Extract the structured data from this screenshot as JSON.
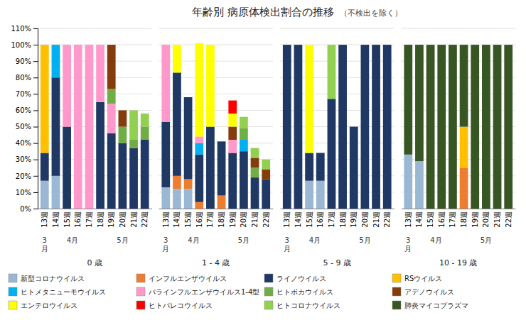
{
  "chart_data": [
    {
      "type": "bar",
      "stacked": true,
      "grid": true,
      "title": "年齢別 病原体検出割合の推移",
      "subtitle": "（不検出を除く）",
      "xlabel": "0 歳",
      "categories": [
        "13週",
        "14週",
        "15週",
        "16週",
        "17週",
        "18週",
        "19週",
        "20週",
        "21週",
        "22週"
      ],
      "annotations": [
        {
          "text": "3\n月",
          "categories": [
            "13週"
          ]
        },
        {
          "text": "4月",
          "categories": [
            "14週",
            "15週",
            "16週",
            "17週"
          ]
        },
        {
          "text": "5月",
          "categories": [
            "18週",
            "19週",
            "20週",
            "21週",
            "22週"
          ]
        }
      ],
      "ylim": [
        0,
        1.1
      ],
      "yticks": [
        {
          "value": 0.0,
          "label": "0%"
        },
        {
          "value": 0.1,
          "label": "10%"
        },
        {
          "value": 0.2,
          "label": "20%"
        },
        {
          "value": 0.3,
          "label": "30%"
        },
        {
          "value": 0.4,
          "label": "40%"
        },
        {
          "value": 0.5,
          "label": "50%"
        },
        {
          "value": 0.6,
          "label": "60%"
        },
        {
          "value": 0.7,
          "label": "70%"
        },
        {
          "value": 0.8,
          "label": "80%"
        },
        {
          "value": 0.9,
          "label": "90%"
        },
        {
          "value": 1.0,
          "label": "100%"
        },
        {
          "value": 1.1,
          "label": "110%"
        }
      ],
      "series": [
        {
          "name": "新型コロナウイルス",
          "color": "#9ab7d3",
          "values": [
            0.17,
            0.2,
            0,
            0,
            0,
            0,
            0,
            0,
            0,
            0
          ]
        },
        {
          "name": "インフルエンザウイルス",
          "color": "#ed7d31",
          "values": [
            0,
            0,
            0,
            0,
            0,
            0,
            0,
            0,
            0,
            0
          ]
        },
        {
          "name": "ライノウイルス",
          "color": "#1f3864",
          "values": [
            0.17,
            0.6,
            0.5,
            0,
            0,
            0.65,
            0.46,
            0.4,
            0.37,
            0.42
          ]
        },
        {
          "name": "RSウイルス",
          "color": "#ffc000",
          "values": [
            0.66,
            0,
            0,
            0,
            0,
            0,
            0,
            0,
            0,
            0
          ]
        },
        {
          "name": "ヒトメタニューモウイルス",
          "color": "#00b0f0",
          "values": [
            0,
            0.2,
            0,
            0,
            0,
            0,
            0,
            0,
            0,
            0
          ]
        },
        {
          "name": "パラインフルエンザウイルス1-4型",
          "color": "#ff99cc",
          "values": [
            0,
            0,
            0.5,
            1.0,
            1.0,
            0.35,
            0.18,
            0,
            0,
            0
          ]
        },
        {
          "name": "ヒトボカウイルス",
          "color": "#70ad47",
          "values": [
            0,
            0,
            0,
            0,
            0,
            0,
            0.09,
            0.1,
            0.05,
            0.08
          ]
        },
        {
          "name": "アデノウイルス",
          "color": "#843c0c",
          "values": [
            0,
            0,
            0,
            0,
            0,
            0,
            0.27,
            0.1,
            0,
            0
          ]
        },
        {
          "name": "エンテロウイルス",
          "color": "#ffff00",
          "values": [
            0,
            0,
            0,
            0,
            0,
            0,
            0,
            0,
            0,
            0
          ]
        },
        {
          "name": "ヒトパレコウイルス",
          "color": "#ff0000",
          "values": [
            0,
            0,
            0,
            0,
            0,
            0,
            0,
            0,
            0,
            0
          ]
        },
        {
          "name": "ヒトコロナウイルス",
          "color": "#92d050",
          "values": [
            0,
            0,
            0,
            0,
            0,
            0,
            0,
            0,
            0.18,
            0.08
          ]
        },
        {
          "name": "肺炎マイコプラズマ",
          "color": "#375623",
          "values": [
            0,
            0,
            0,
            0,
            0,
            0,
            0,
            0,
            0,
            0
          ]
        }
      ]
    },
    {
      "type": "bar",
      "stacked": true,
      "grid": true,
      "tick_labels": "x",
      "xlabel": "1 - 4 歳",
      "categories": [
        "13週",
        "14週",
        "15週",
        "16週",
        "17週",
        "18週",
        "19週",
        "20週",
        "21週",
        "22週"
      ],
      "annotations": [
        {
          "text": "3\n月",
          "categories": [
            "13週"
          ]
        },
        {
          "text": "4月",
          "categories": [
            "14週",
            "15週",
            "16週",
            "17週"
          ]
        },
        {
          "text": "5月",
          "categories": [
            "18週",
            "19週",
            "20週",
            "21週",
            "22週"
          ]
        }
      ],
      "ylim": [
        0,
        1.1
      ],
      "yticks": [
        0.0,
        0.1,
        0.2,
        0.3,
        0.4,
        0.5,
        0.6,
        0.7,
        0.8,
        0.9,
        1.0,
        1.1
      ],
      "series": [
        {
          "name": "新型コロナウイルス",
          "color": "#9ab7d3",
          "values": [
            0.13,
            0.12,
            0.12,
            0,
            0,
            0,
            0,
            0,
            0,
            0
          ]
        },
        {
          "name": "インフルエンザウイルス",
          "color": "#ed7d31",
          "values": [
            0,
            0.08,
            0.06,
            0.04,
            0,
            0.08,
            0,
            0,
            0,
            0
          ]
        },
        {
          "name": "ライノウイルス",
          "color": "#1f3864",
          "values": [
            0.4,
            0.63,
            0.5,
            0.29,
            0.5,
            0.33,
            0.34,
            0.35,
            0.19,
            0.18
          ]
        },
        {
          "name": "RSウイルス",
          "color": "#ffc000",
          "values": [
            0,
            0,
            0,
            0,
            0,
            0,
            0,
            0,
            0,
            0
          ]
        },
        {
          "name": "ヒトメタニューモウイルス",
          "color": "#00b0f0",
          "values": [
            0,
            0,
            0,
            0.07,
            0,
            0,
            0,
            0.07,
            0,
            0
          ]
        },
        {
          "name": "パラインフルエンザウイルス1-4型",
          "color": "#ff99cc",
          "values": [
            0.47,
            0,
            0,
            0.04,
            0,
            0,
            0.08,
            0,
            0,
            0
          ]
        },
        {
          "name": "ヒトボカウイルス",
          "color": "#70ad47",
          "values": [
            0,
            0,
            0,
            0,
            0,
            0,
            0,
            0.07,
            0.06,
            0
          ]
        },
        {
          "name": "アデノウイルス",
          "color": "#843c0c",
          "values": [
            0,
            0,
            0,
            0,
            0,
            0,
            0.08,
            0,
            0.06,
            0.06
          ]
        },
        {
          "name": "エンテロウイルス",
          "color": "#ffff00",
          "values": [
            0,
            0.17,
            0,
            0.57,
            0.5,
            0,
            0.08,
            0,
            0,
            0
          ]
        },
        {
          "name": "ヒトパレコウイルス",
          "color": "#ff0000",
          "values": [
            0,
            0,
            0,
            0,
            0,
            0,
            0.08,
            0,
            0,
            0
          ]
        },
        {
          "name": "ヒトコロナウイルス",
          "color": "#92d050",
          "values": [
            0,
            0,
            0,
            0,
            0,
            0,
            0,
            0.07,
            0.06,
            0.06
          ]
        },
        {
          "name": "肺炎マイコプラズマ",
          "color": "#375623",
          "values": [
            0,
            0,
            0,
            0,
            0,
            0,
            0,
            0,
            0,
            0
          ]
        }
      ]
    },
    {
      "type": "bar",
      "stacked": true,
      "grid": true,
      "tick_labels": "x",
      "xlabel": "5 - 9 歳",
      "categories": [
        "13週",
        "14週",
        "15週",
        "16週",
        "17週",
        "18週",
        "19週",
        "20週",
        "21週",
        "22週"
      ],
      "annotations": [
        {
          "text": "3\n月",
          "categories": [
            "13週"
          ]
        },
        {
          "text": "4月",
          "categories": [
            "14週",
            "15週",
            "16週",
            "17週"
          ]
        },
        {
          "text": "5月",
          "categories": [
            "18週",
            "19週",
            "20週",
            "21週",
            "22週"
          ]
        }
      ],
      "ylim": [
        0,
        1.1
      ],
      "yticks": [
        0.0,
        0.1,
        0.2,
        0.3,
        0.4,
        0.5,
        0.6,
        0.7,
        0.8,
        0.9,
        1.0,
        1.1
      ],
      "series": [
        {
          "name": "新型コロナウイルス",
          "color": "#9ab7d3",
          "values": [
            0,
            0,
            0.17,
            0.17,
            0,
            0,
            0,
            0,
            0,
            0
          ]
        },
        {
          "name": "インフルエンザウイルス",
          "color": "#ed7d31",
          "values": [
            0,
            0,
            0,
            0,
            0,
            0,
            0,
            0,
            0,
            0
          ]
        },
        {
          "name": "ライノウイルス",
          "color": "#1f3864",
          "values": [
            1.0,
            1.0,
            0.17,
            0.17,
            0.67,
            1.0,
            0.5,
            1.0,
            1.0,
            1.0
          ]
        },
        {
          "name": "RSウイルス",
          "color": "#ffc000",
          "values": [
            0,
            0,
            0,
            0,
            0,
            0,
            0,
            0,
            0,
            0
          ]
        },
        {
          "name": "ヒトメタニューモウイルス",
          "color": "#00b0f0",
          "values": [
            0,
            0,
            0,
            0,
            0,
            0,
            0,
            0,
            0,
            0
          ]
        },
        {
          "name": "パラインフルエンザウイルス1-4型",
          "color": "#ff99cc",
          "values": [
            0,
            0,
            0,
            0,
            0,
            0,
            0,
            0,
            0,
            0
          ]
        },
        {
          "name": "ヒトボカウイルス",
          "color": "#70ad47",
          "values": [
            0,
            0,
            0,
            0,
            0,
            0,
            0,
            0,
            0,
            0
          ]
        },
        {
          "name": "アデノウイルス",
          "color": "#843c0c",
          "values": [
            0,
            0,
            0,
            0,
            0,
            0,
            0,
            0,
            0,
            0
          ]
        },
        {
          "name": "エンテロウイルス",
          "color": "#ffff00",
          "values": [
            0,
            0,
            0.66,
            0,
            0,
            0,
            0,
            0,
            0,
            0
          ]
        },
        {
          "name": "ヒトパレコウイルス",
          "color": "#ff0000",
          "values": [
            0,
            0,
            0,
            0,
            0,
            0,
            0,
            0,
            0,
            0
          ]
        },
        {
          "name": "ヒトコロナウイルス",
          "color": "#92d050",
          "values": [
            0,
            0,
            0,
            0,
            0.33,
            0,
            0,
            0,
            0,
            0
          ]
        },
        {
          "name": "肺炎マイコプラズマ",
          "color": "#375623",
          "values": [
            0,
            0,
            0,
            0,
            0,
            0,
            0,
            0,
            0,
            0
          ]
        }
      ]
    },
    {
      "type": "bar",
      "stacked": true,
      "grid": true,
      "tick_labels": "x",
      "xlabel": "10 - 19 歳",
      "categories": [
        "13週",
        "14週",
        "15週",
        "16週",
        "17週",
        "18週",
        "19週",
        "20週",
        "21週",
        "22週"
      ],
      "annotations": [
        {
          "text": "3\n月",
          "categories": [
            "13週"
          ]
        },
        {
          "text": "4月",
          "categories": [
            "14週",
            "15週",
            "16週",
            "17週"
          ]
        },
        {
          "text": "5月",
          "categories": [
            "18週",
            "19週",
            "20週",
            "21週",
            "22週"
          ]
        }
      ],
      "ylim": [
        0,
        1.1
      ],
      "yticks": [
        0.0,
        0.1,
        0.2,
        0.3,
        0.4,
        0.5,
        0.6,
        0.7,
        0.8,
        0.9,
        1.0,
        1.1
      ],
      "series": [
        {
          "name": "新型コロナウイルス",
          "color": "#9ab7d3",
          "values": [
            0.33,
            0.29,
            0,
            0,
            0,
            0,
            0,
            0,
            0,
            0
          ]
        },
        {
          "name": "インフルエンザウイルス",
          "color": "#ed7d31",
          "values": [
            0,
            0,
            0,
            0,
            0,
            0.25,
            0,
            0,
            0,
            0
          ]
        },
        {
          "name": "ライノウイルス",
          "color": "#1f3864",
          "values": [
            0,
            0,
            0,
            0,
            0,
            0,
            0,
            0,
            0,
            0
          ]
        },
        {
          "name": "RSウイルス",
          "color": "#ffc000",
          "values": [
            0,
            0,
            0,
            0,
            0,
            0.25,
            0,
            0,
            0,
            0
          ]
        },
        {
          "name": "ヒトメタニューモウイルス",
          "color": "#00b0f0",
          "values": [
            0,
            0,
            0,
            0,
            0,
            0,
            0,
            0,
            0,
            0
          ]
        },
        {
          "name": "パラインフルエンザウイルス1-4型",
          "color": "#ff99cc",
          "values": [
            0,
            0,
            0,
            0,
            0,
            0,
            0,
            0,
            0,
            0
          ]
        },
        {
          "name": "ヒトボカウイルス",
          "color": "#70ad47",
          "values": [
            0,
            0,
            0,
            0,
            0,
            0,
            0,
            0,
            0,
            0
          ]
        },
        {
          "name": "アデノウイルス",
          "color": "#843c0c",
          "values": [
            0,
            0,
            0,
            0,
            0,
            0,
            0,
            0,
            0,
            0
          ]
        },
        {
          "name": "エンテロウイルス",
          "color": "#ffff00",
          "values": [
            0,
            0,
            0,
            0,
            0,
            0,
            0,
            0,
            0,
            0
          ]
        },
        {
          "name": "ヒトパレコウイルス",
          "color": "#ff0000",
          "values": [
            0,
            0,
            0,
            0,
            0,
            0,
            0,
            0,
            0,
            0
          ]
        },
        {
          "name": "ヒトコロナウイルス",
          "color": "#92d050",
          "values": [
            0,
            0,
            0,
            0,
            0,
            0,
            0,
            0,
            0,
            0
          ]
        },
        {
          "name": "肺炎マイコプラズマ",
          "color": "#375623",
          "values": [
            0.67,
            0.71,
            1.0,
            1.0,
            1.0,
            0.5,
            1.0,
            1.0,
            1.0,
            1.0
          ]
        }
      ]
    }
  ]
}
